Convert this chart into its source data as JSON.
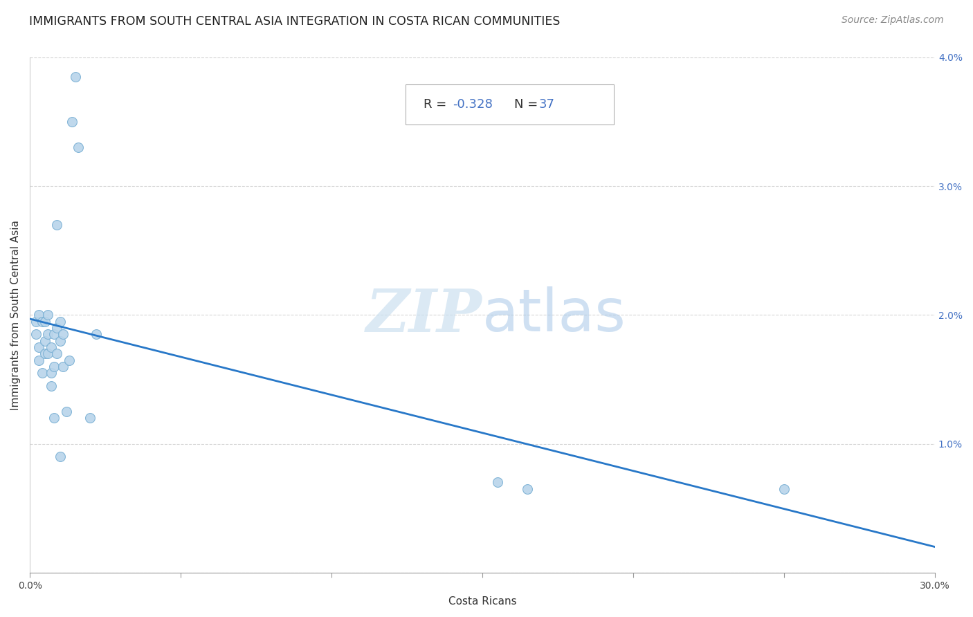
{
  "title": "IMMIGRANTS FROM SOUTH CENTRAL ASIA INTEGRATION IN COSTA RICAN COMMUNITIES",
  "source": "Source: ZipAtlas.com",
  "xlabel": "Costa Ricans",
  "ylabel": "Immigrants from South Central Asia",
  "R": -0.328,
  "N": 37,
  "xlim": [
    0.0,
    0.3
  ],
  "ylim": [
    0.0,
    0.04
  ],
  "xtick_vals": [
    0.0,
    0.05,
    0.1,
    0.15,
    0.2,
    0.25,
    0.3
  ],
  "ytick_vals": [
    0.0,
    0.01,
    0.02,
    0.03,
    0.04
  ],
  "scatter_color": "#b8d4ea",
  "scatter_edge_color": "#7ab0d4",
  "line_color": "#2878c8",
  "scatter_x": [
    0.002,
    0.002,
    0.003,
    0.003,
    0.003,
    0.004,
    0.004,
    0.005,
    0.005,
    0.005,
    0.006,
    0.006,
    0.006,
    0.007,
    0.007,
    0.007,
    0.008,
    0.008,
    0.009,
    0.009,
    0.01,
    0.01,
    0.011,
    0.011,
    0.012,
    0.013,
    0.014,
    0.015,
    0.016,
    0.02,
    0.022,
    0.009,
    0.155,
    0.165,
    0.25,
    0.008,
    0.01
  ],
  "scatter_y": [
    0.0195,
    0.0185,
    0.02,
    0.0175,
    0.0165,
    0.0195,
    0.0155,
    0.0195,
    0.018,
    0.017,
    0.02,
    0.0185,
    0.017,
    0.0175,
    0.0155,
    0.0145,
    0.0185,
    0.016,
    0.019,
    0.017,
    0.0195,
    0.018,
    0.0185,
    0.016,
    0.0125,
    0.0165,
    0.035,
    0.0385,
    0.033,
    0.012,
    0.0185,
    0.027,
    0.007,
    0.0065,
    0.0065,
    0.012,
    0.009
  ],
  "regression_start_y": 0.0197,
  "regression_end_y": 0.002,
  "title_fontsize": 12.5,
  "label_fontsize": 11,
  "tick_fontsize": 10,
  "source_fontsize": 10,
  "annot_fontsize": 13,
  "watermark_zip_color": "#cce0f0",
  "watermark_atlas_color": "#a8c8e8"
}
